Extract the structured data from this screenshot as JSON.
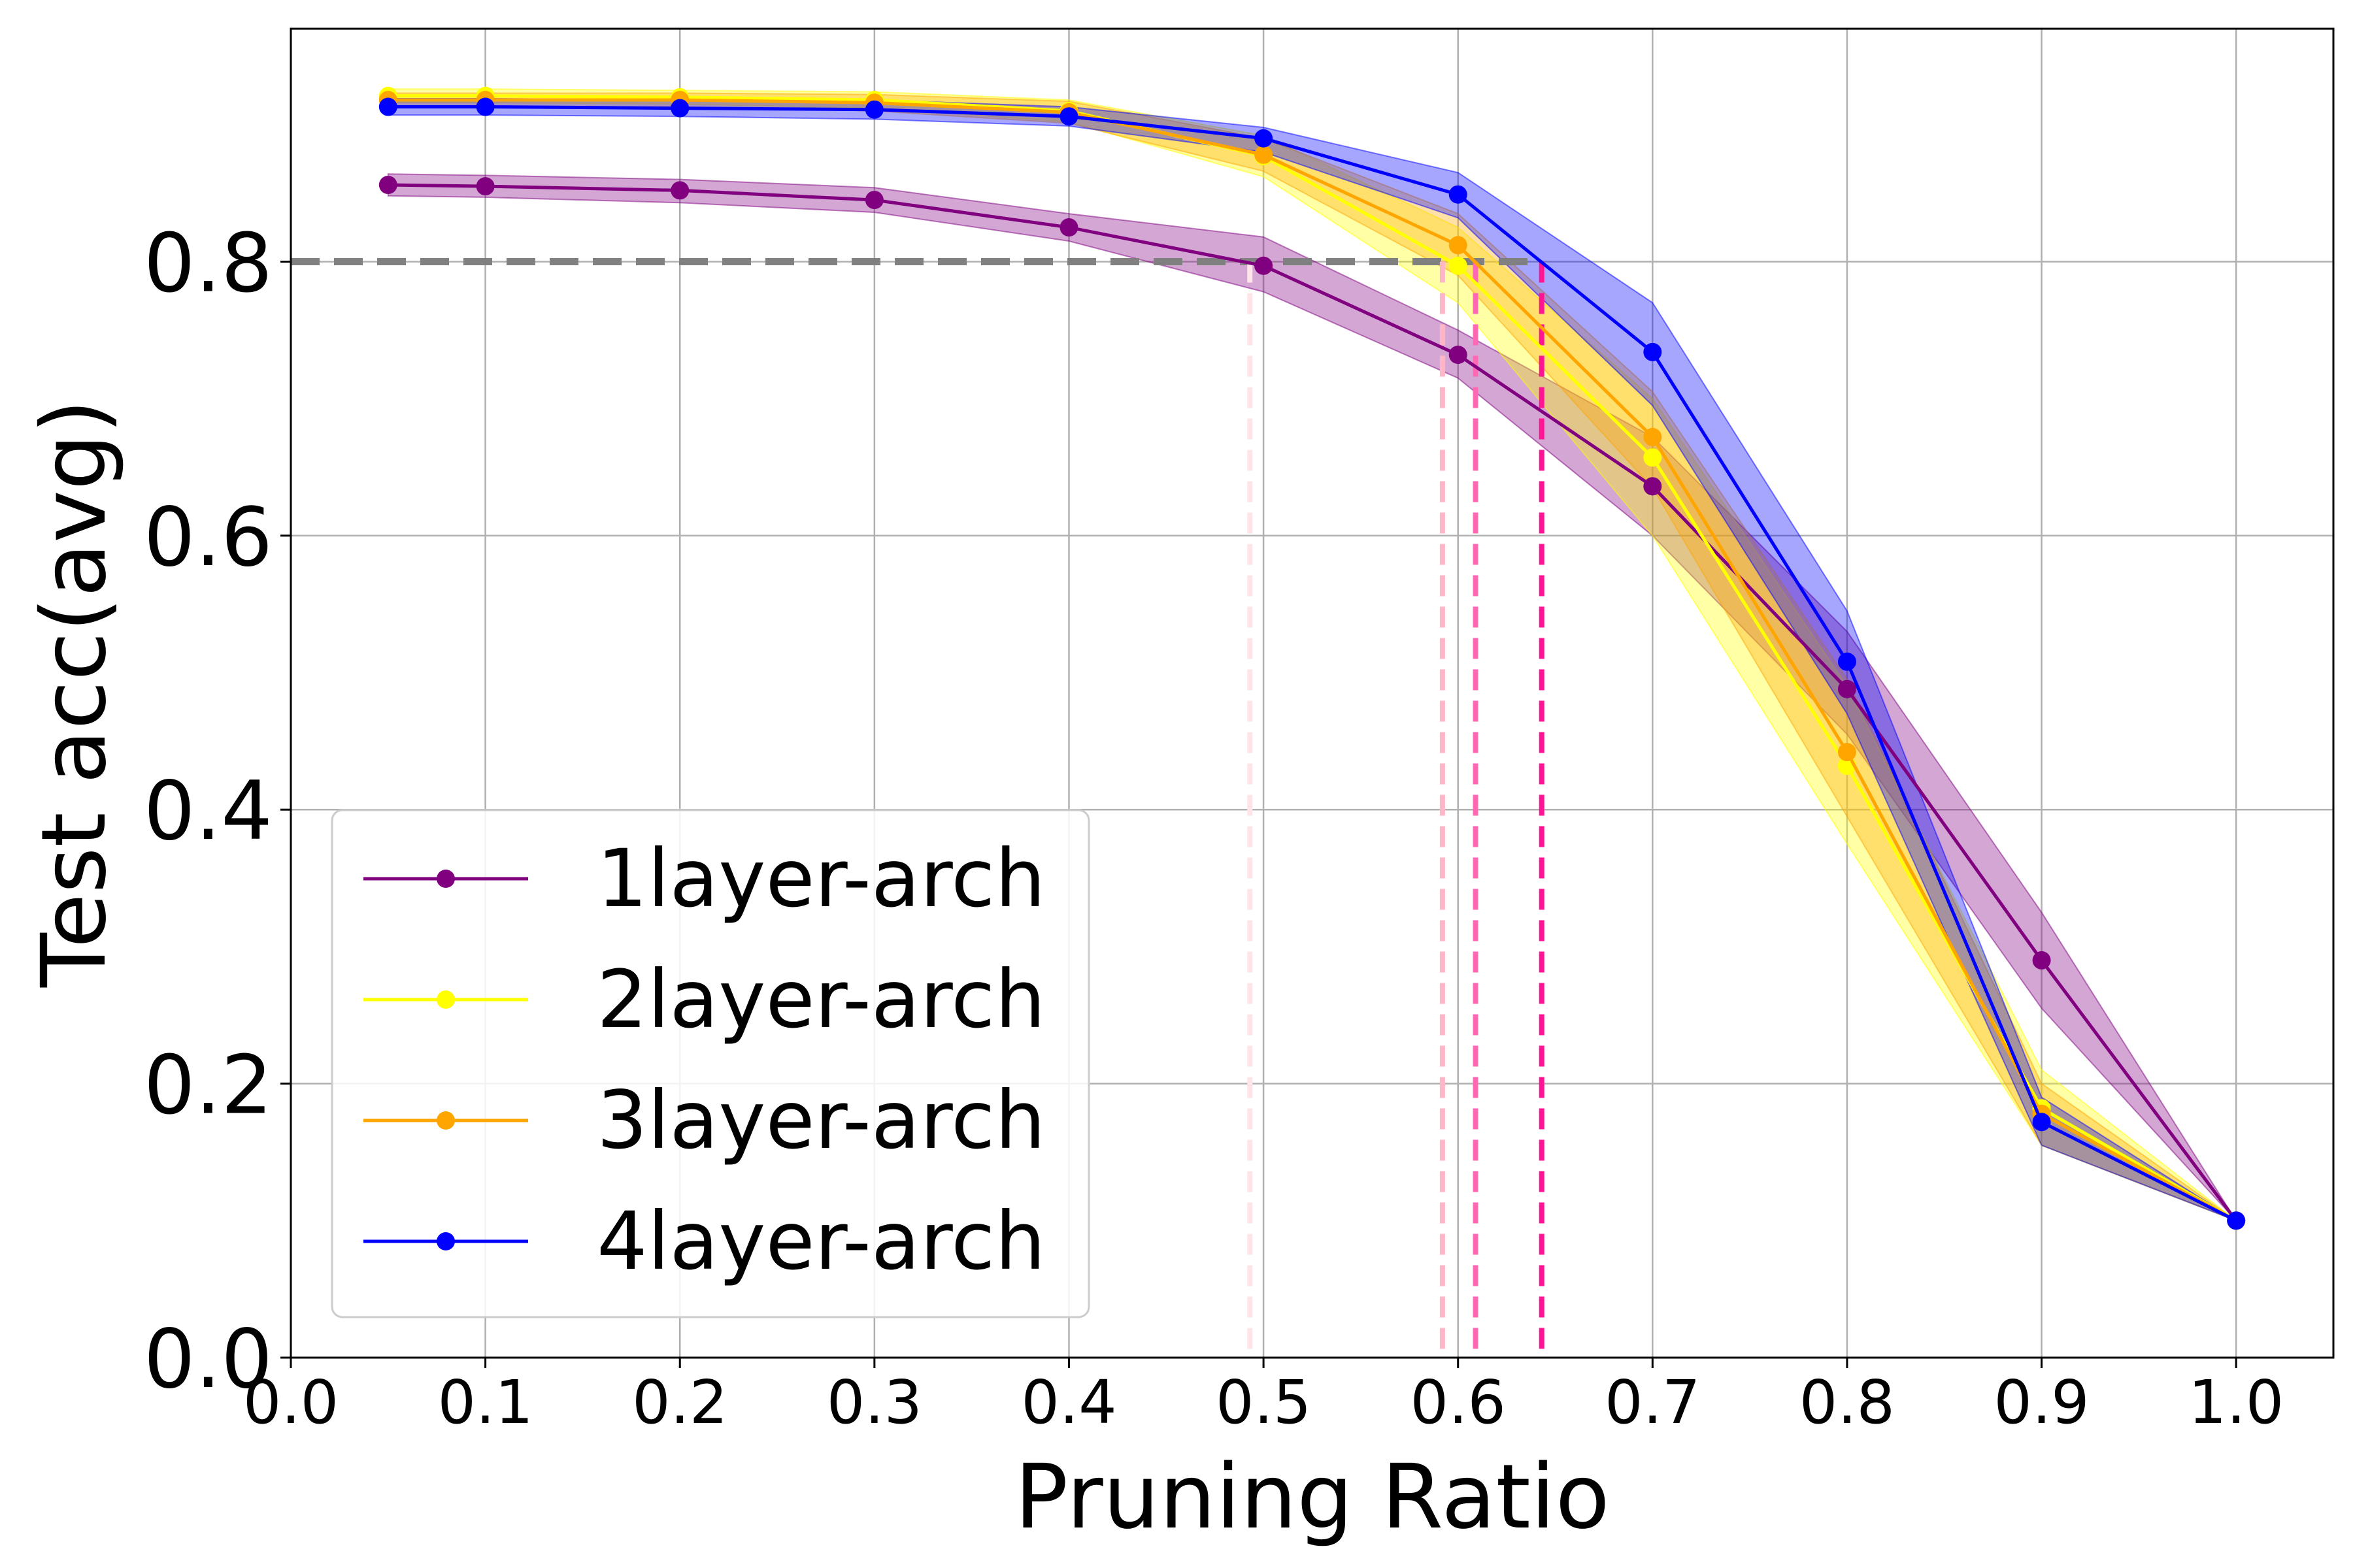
{
  "chart_data": {
    "type": "line",
    "title": "",
    "xlabel": "Pruning Ratio",
    "ylabel": "Test acc(avg)",
    "xlim": [
      0.0,
      1.05
    ],
    "ylim": [
      0.0,
      0.97
    ],
    "xticks": [
      0.0,
      0.1,
      0.2,
      0.3,
      0.4,
      0.5,
      0.6,
      0.7,
      0.8,
      0.9,
      1.0
    ],
    "xtick_labels": [
      "0.0",
      "0.1",
      "0.2",
      "0.3",
      "0.4",
      "0.5",
      "0.6",
      "0.7",
      "0.8",
      "0.9",
      "1.0"
    ],
    "yticks": [
      0.0,
      0.2,
      0.4,
      0.6,
      0.8
    ],
    "ytick_labels": [
      "0.0",
      "0.2",
      "0.4",
      "0.6",
      "0.8"
    ],
    "grid": true,
    "legend_position": "lower-left",
    "x": [
      0.05,
      0.1,
      0.2,
      0.3,
      0.4,
      0.5,
      0.6,
      0.7,
      0.8,
      0.9,
      1.0
    ],
    "series": [
      {
        "name": "1layer-arch",
        "color": "#800080",
        "values": [
          0.856,
          0.855,
          0.852,
          0.845,
          0.825,
          0.797,
          0.732,
          0.636,
          0.488,
          0.29,
          0.1
        ],
        "band_lower": [
          0.848,
          0.847,
          0.843,
          0.836,
          0.815,
          0.778,
          0.715,
          0.6,
          0.455,
          0.255,
          0.1
        ],
        "band_upper": [
          0.864,
          0.863,
          0.86,
          0.854,
          0.835,
          0.818,
          0.75,
          0.672,
          0.53,
          0.325,
          0.1
        ]
      },
      {
        "name": "2layer-arch",
        "color": "#ffff00",
        "values": [
          0.921,
          0.921,
          0.92,
          0.918,
          0.91,
          0.877,
          0.797,
          0.657,
          0.432,
          0.182,
          0.1
        ],
        "band_lower": [
          0.916,
          0.916,
          0.915,
          0.912,
          0.902,
          0.862,
          0.77,
          0.6,
          0.375,
          0.155,
          0.1
        ],
        "band_upper": [
          0.926,
          0.926,
          0.925,
          0.924,
          0.918,
          0.892,
          0.825,
          0.7,
          0.49,
          0.21,
          0.1
        ]
      },
      {
        "name": "3layer-arch",
        "color": "#ffa500",
        "values": [
          0.918,
          0.918,
          0.918,
          0.916,
          0.909,
          0.878,
          0.812,
          0.672,
          0.442,
          0.178,
          0.1
        ],
        "band_lower": [
          0.913,
          0.913,
          0.913,
          0.91,
          0.901,
          0.866,
          0.79,
          0.635,
          0.395,
          0.155,
          0.1
        ],
        "band_upper": [
          0.923,
          0.923,
          0.923,
          0.922,
          0.917,
          0.89,
          0.835,
          0.705,
          0.495,
          0.2,
          0.1
        ]
      },
      {
        "name": "4layer-arch",
        "color": "#0000ff",
        "values": [
          0.913,
          0.913,
          0.912,
          0.911,
          0.906,
          0.89,
          0.849,
          0.734,
          0.508,
          0.172,
          0.1
        ],
        "band_lower": [
          0.907,
          0.907,
          0.906,
          0.904,
          0.899,
          0.88,
          0.832,
          0.695,
          0.47,
          0.155,
          0.1
        ],
        "band_upper": [
          0.919,
          0.919,
          0.918,
          0.918,
          0.913,
          0.898,
          0.865,
          0.77,
          0.545,
          0.19,
          0.1
        ]
      }
    ],
    "reference_lines": {
      "horizontal": {
        "y": 0.8,
        "x_end": 0.643,
        "color": "#808080",
        "style": "dashed"
      },
      "vertical": [
        {
          "x": 0.493,
          "color": "#ffe4e9"
        },
        {
          "x": 0.592,
          "color": "#ffb6c8"
        },
        {
          "x": 0.609,
          "color": "#ff69b4"
        },
        {
          "x": 0.643,
          "color": "#ff1493"
        }
      ]
    }
  }
}
